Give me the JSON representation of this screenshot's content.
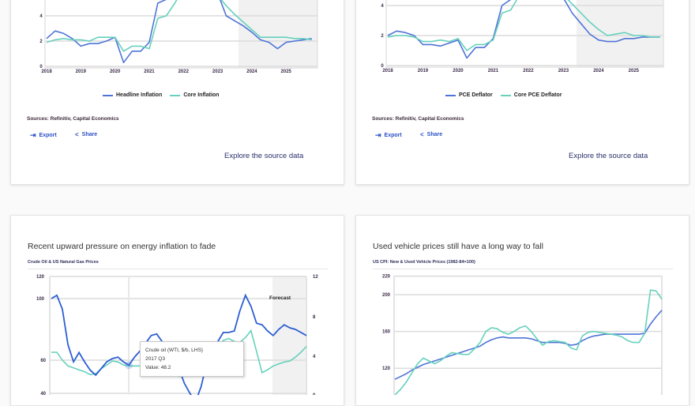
{
  "colors": {
    "blue": "#4f74d8",
    "teal": "#66d1bc",
    "crude_blue": "#2c5fd3",
    "forecast_shade": "#f1f1f1",
    "link": "#2b4fc4"
  },
  "cards": [
    {
      "legend": [
        "Headline Inflation",
        "Core Inflation"
      ],
      "source": "Sources: Refinitiv, Capital Economics",
      "export_label": "Export",
      "share_label": "Share",
      "explore_label": "Explore the source data"
    },
    {
      "legend": [
        "PCE Deflator",
        "Core PCE Deflator"
      ],
      "source": "Sources: Refinitiv, Capital Economics",
      "export_label": "Export",
      "share_label": "Share",
      "explore_label": "Explore the source data"
    },
    {
      "title": "Recent upward pressure on energy inflation to fade",
      "subtitle": "Crude Oil & US Natural Gas Prices",
      "forecast_label": "Forecast",
      "tooltip": {
        "series": "Crude oil (WTI, $/b, LHS)",
        "period": "2017 Q3",
        "value": "Value: 48.2"
      }
    },
    {
      "title": "Used vehicle prices still have a long way to fall",
      "subtitle": "US CPI: New & Used Vehicle Prices (1982-84=100)"
    }
  ],
  "chart_data": [
    {
      "type": "line",
      "x_ticks": [
        "2018",
        "2019",
        "2020",
        "2021",
        "2022",
        "2023",
        "2024",
        "2025"
      ],
      "y_ticks": [
        "0",
        "2",
        "4"
      ],
      "forecast_shaded_from": "2023 H2",
      "grid": true,
      "legend_position": "bottom",
      "x": [
        "2018Q1",
        "2018Q2",
        "2018Q3",
        "2018Q4",
        "2019Q1",
        "2019Q2",
        "2019Q3",
        "2019Q4",
        "2020Q1",
        "2020Q2",
        "2020Q3",
        "2020Q4",
        "2021Q1",
        "2021Q2",
        "2021Q3",
        "2021Q4",
        "2022Q1",
        "2022Q2",
        "2022Q3",
        "2022Q4",
        "2023Q1",
        "2023Q2",
        "2023Q3",
        "2023Q4",
        "2024Q1",
        "2024Q2",
        "2024Q3",
        "2024Q4",
        "2025Q1",
        "2025Q2",
        "2025Q3",
        "2025Q4"
      ],
      "series": [
        {
          "name": "Headline Inflation",
          "values": [
            2.2,
            2.8,
            2.6,
            2.2,
            1.6,
            1.8,
            1.8,
            2.0,
            2.3,
            0.3,
            1.2,
            1.2,
            1.9,
            5.0,
            5.3,
            6.7,
            8.0,
            8.6,
            8.3,
            7.1,
            5.8,
            4.0,
            3.6,
            3.2,
            2.7,
            2.1,
            1.9,
            1.4,
            1.9,
            2.0,
            2.1,
            2.2
          ]
        },
        {
          "name": "Core Inflation",
          "values": [
            1.9,
            2.1,
            2.2,
            2.1,
            2.1,
            2.0,
            2.3,
            2.3,
            2.3,
            1.2,
            1.6,
            1.6,
            1.4,
            3.8,
            4.0,
            5.0,
            6.2,
            6.0,
            6.3,
            6.0,
            5.6,
            4.8,
            4.1,
            3.5,
            2.9,
            2.3,
            2.3,
            2.3,
            2.3,
            2.2,
            2.2,
            2.1
          ]
        }
      ]
    },
    {
      "type": "line",
      "x_ticks": [
        "2018",
        "2019",
        "2020",
        "2021",
        "2022",
        "2023",
        "2024",
        "2025"
      ],
      "y_ticks": [
        "0",
        "2",
        "4"
      ],
      "forecast_shaded_from": "2023 H2",
      "grid": true,
      "legend_position": "bottom",
      "x": [
        "2018Q1",
        "2018Q2",
        "2018Q3",
        "2018Q4",
        "2019Q1",
        "2019Q2",
        "2019Q3",
        "2019Q4",
        "2020Q1",
        "2020Q2",
        "2020Q3",
        "2020Q4",
        "2021Q1",
        "2021Q2",
        "2021Q3",
        "2021Q4",
        "2022Q1",
        "2022Q2",
        "2022Q3",
        "2022Q4",
        "2023Q1",
        "2023Q2",
        "2023Q3",
        "2023Q4",
        "2024Q1",
        "2024Q2",
        "2024Q3",
        "2024Q4",
        "2025Q1",
        "2025Q2",
        "2025Q3",
        "2025Q4"
      ],
      "series": [
        {
          "name": "PCE Deflator",
          "values": [
            2.0,
            2.3,
            2.2,
            2.0,
            1.4,
            1.4,
            1.3,
            1.5,
            1.7,
            0.5,
            1.2,
            1.2,
            1.8,
            4.0,
            4.4,
            5.8,
            6.5,
            6.5,
            6.2,
            5.5,
            4.5,
            3.5,
            2.8,
            2.1,
            1.7,
            1.6,
            1.6,
            1.8,
            1.8,
            1.9,
            1.9,
            1.9
          ]
        },
        {
          "name": "Core PCE Deflator",
          "values": [
            1.9,
            2.0,
            2.0,
            1.9,
            1.6,
            1.6,
            1.7,
            1.6,
            1.8,
            1.0,
            1.4,
            1.4,
            1.7,
            3.5,
            3.7,
            4.7,
            5.2,
            4.9,
            5.0,
            4.8,
            4.7,
            4.1,
            3.5,
            2.9,
            2.4,
            2.0,
            2.1,
            2.2,
            2.0,
            2.0,
            1.9,
            1.9
          ]
        }
      ]
    },
    {
      "type": "line",
      "y_ticks_left": [
        "120",
        "100",
        "60",
        "40"
      ],
      "y_ticks_right": [
        "12",
        "8",
        "4",
        "0"
      ],
      "grid": true,
      "series": [
        {
          "axis": "left",
          "values": [
            100,
            103,
            93,
            70,
            59,
            65,
            59,
            54,
            51,
            55,
            59,
            61,
            62,
            59,
            57,
            62,
            66,
            71,
            76,
            77,
            72,
            68,
            62,
            55,
            46,
            40,
            35,
            44,
            58,
            66,
            72,
            78,
            78,
            79,
            92,
            103,
            95,
            84,
            83,
            79,
            76,
            80,
            83,
            81,
            80,
            78,
            76
          ]
        },
        {
          "axis": "right",
          "values": [
            4.4,
            4.4,
            3.6,
            3.0,
            2.8,
            2.6,
            2.4,
            2.1,
            2.2,
            2.7,
            3.1,
            3.5,
            3.4,
            3.1,
            3.0,
            3.0,
            3.0,
            3.1,
            3.0,
            2.8,
            2.6,
            2.4,
            2.2,
            1.9,
            2.0,
            2.5,
            2.8,
            3.2,
            3.6,
            4.2,
            5.0,
            5.6,
            5.8,
            5.5,
            5.4,
            5.9,
            6.6,
            4.5,
            2.3,
            2.6,
            3.0,
            3.2,
            3.4,
            3.5,
            3.9,
            4.4,
            5.0
          ]
        }
      ]
    },
    {
      "type": "line",
      "y_ticks": [
        "220",
        "200",
        "160",
        "120"
      ],
      "grid": true,
      "series": [
        {
          "values": [
            108,
            111,
            114,
            118,
            121,
            124,
            126,
            128,
            130,
            132,
            134,
            136,
            138,
            140,
            142,
            144,
            148,
            151,
            153,
            154,
            153,
            153,
            153,
            153,
            152,
            150,
            148,
            148,
            148,
            148,
            147,
            145,
            146,
            150,
            153,
            155,
            156,
            157,
            157,
            157,
            157,
            157,
            157,
            157,
            158,
            168,
            176,
            183
          ]
        },
        {
          "values": [
            91,
            97,
            105,
            115,
            125,
            131,
            128,
            125,
            128,
            133,
            137,
            136,
            135,
            135,
            141,
            148,
            160,
            164,
            163,
            159,
            157,
            160,
            164,
            166,
            160,
            152,
            145,
            149,
            150,
            149,
            148,
            142,
            140,
            155,
            159,
            160,
            159,
            158,
            157,
            156,
            154,
            150,
            148,
            148,
            158,
            205,
            204,
            195
          ]
        }
      ]
    }
  ]
}
